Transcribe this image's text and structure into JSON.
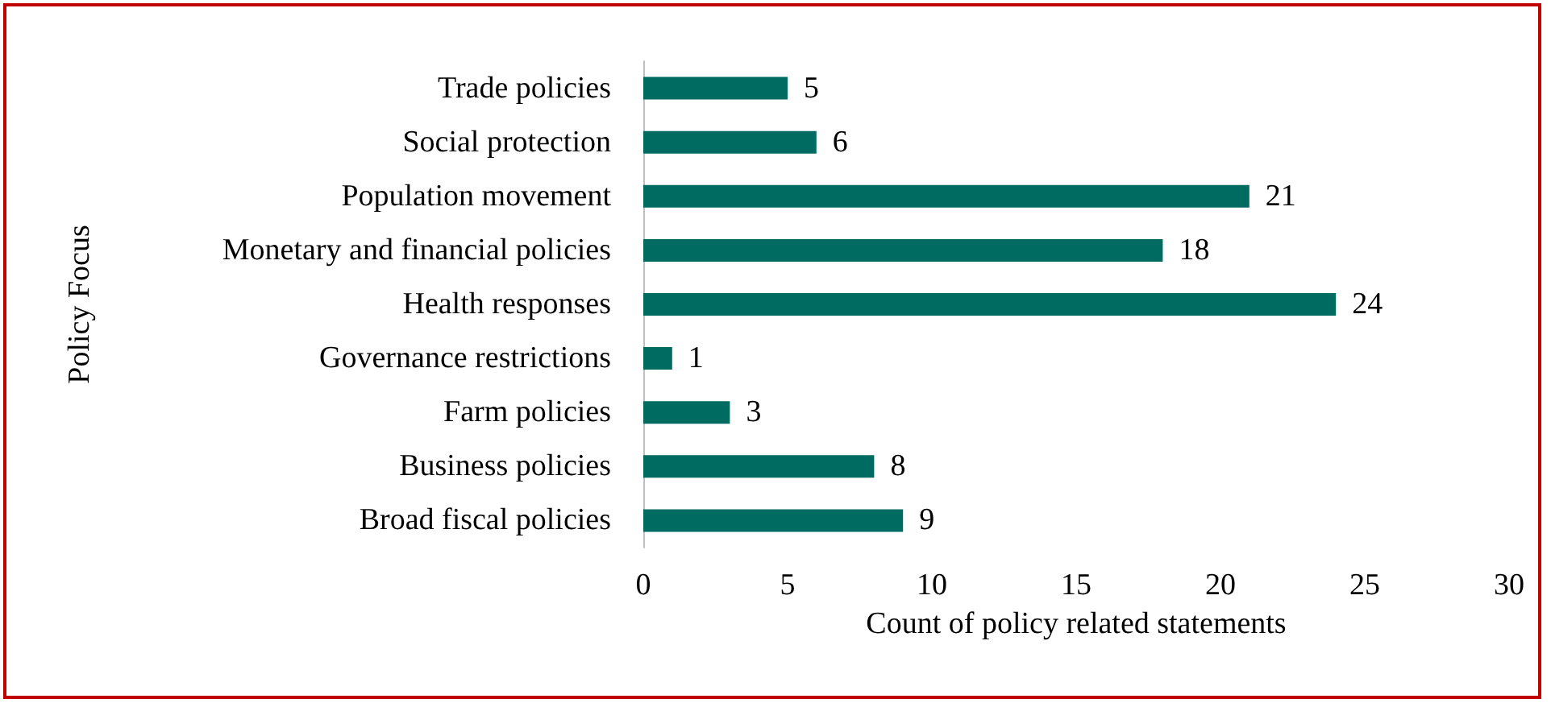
{
  "chart_data": {
    "type": "bar",
    "orientation": "horizontal",
    "xlabel": "Count of policy related statements",
    "ylabel": "Policy Focus",
    "categories": [
      "Trade policies",
      "Social protection",
      "Population movement",
      "Monetary and financial policies",
      "Health responses",
      "Governance restrictions",
      "Farm policies",
      "Business policies",
      "Broad fiscal policies"
    ],
    "values": [
      5,
      6,
      21,
      18,
      24,
      1,
      3,
      8,
      9
    ],
    "color": "#006b61",
    "data_labels": true,
    "grid": false,
    "xlim": [
      0,
      30
    ],
    "xticks": [
      0,
      5,
      10,
      15,
      20,
      25,
      30
    ]
  }
}
